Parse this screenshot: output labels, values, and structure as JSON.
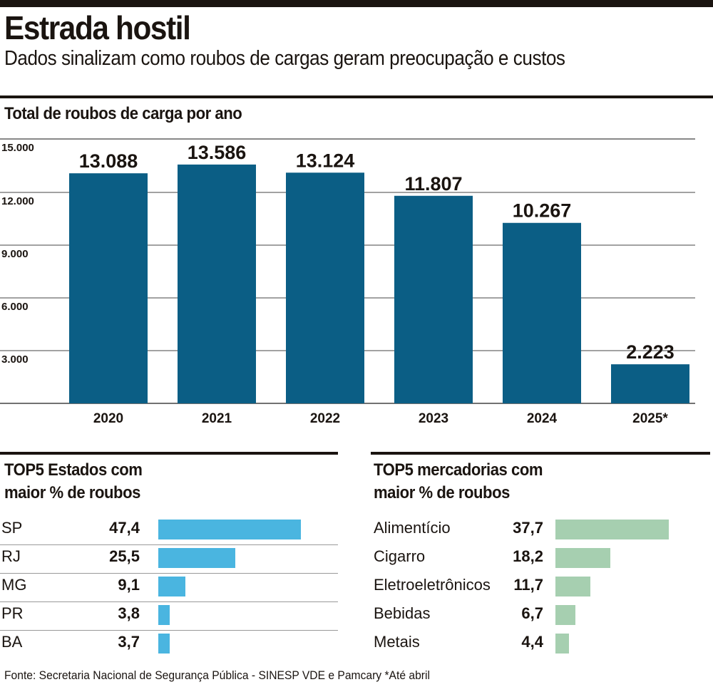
{
  "header": {
    "title": "Estrada hostil",
    "subtitle": "Dados sinalizam como roubos de cargas geram preocupação e custos"
  },
  "chart_data": [
    {
      "type": "bar",
      "title": "Total de roubos de carga por ano",
      "categories": [
        "2020",
        "2021",
        "2022",
        "2023",
        "2024",
        "2025*"
      ],
      "values": [
        13088,
        13586,
        13124,
        11807,
        10267,
        2223
      ],
      "value_labels": [
        "13.088",
        "13.586",
        "13.124",
        "11.807",
        "10.267",
        "2.223"
      ],
      "yticks": [
        3000,
        6000,
        9000,
        12000,
        15000
      ],
      "ytick_labels": [
        "3.000",
        "6.000",
        "9.000",
        "12.000",
        "15.000"
      ],
      "ylim": [
        0,
        15000
      ],
      "grid": true,
      "color": "#0b5e85"
    },
    {
      "type": "bar",
      "orientation": "horizontal",
      "title": "TOP5 Estados com maior % de roubos",
      "title_lines": [
        "TOP5 Estados com",
        "maior % de roubos"
      ],
      "categories": [
        "SP",
        "RJ",
        "MG",
        "PR",
        "BA"
      ],
      "values": [
        47.4,
        25.5,
        9.1,
        3.8,
        3.7
      ],
      "value_labels": [
        "47,4",
        "25,5",
        "9,1",
        "3,8",
        "3,7"
      ],
      "color": "#4ab5e0"
    },
    {
      "type": "bar",
      "orientation": "horizontal",
      "title": "TOP5 mercadorias com maior % de roubos",
      "title_lines": [
        "TOP5 mercadorias com",
        "maior % de roubos"
      ],
      "categories": [
        "Alimentício",
        "Cigarro",
        "Eletroeletrônicos",
        "Bebidas",
        "Metais"
      ],
      "values": [
        37.7,
        18.2,
        11.7,
        6.7,
        4.4
      ],
      "value_labels": [
        "37,7",
        "18,2",
        "11,7",
        "6,7",
        "4,4"
      ],
      "color": "#a6cfb0"
    }
  ],
  "footer": {
    "source": "Fonte: Secretaria Nacional de Segurança Pública - SINESP VDE e Pamcary  *Até abril"
  }
}
